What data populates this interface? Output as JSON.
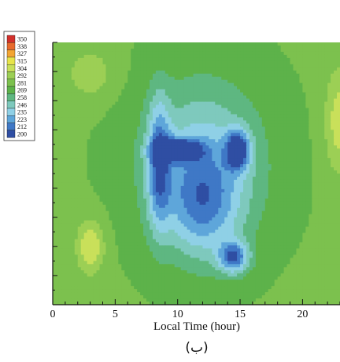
{
  "chart_data": {
    "type": "heatmap",
    "xlabel": "Local Time (hour)",
    "x_ticks": [
      0,
      5,
      10,
      15,
      20
    ],
    "xlim": [
      0,
      23
    ],
    "caption": "(ب)",
    "legend": {
      "levels": [
        350,
        338,
        327,
        315,
        304,
        292,
        281,
        269,
        258,
        246,
        235,
        223,
        212,
        200
      ],
      "colors": [
        "#d2302b",
        "#e86a2c",
        "#f3a532",
        "#e7e44a",
        "#c9e05a",
        "#9ccf55",
        "#7cc14e",
        "#5db24a",
        "#5eb781",
        "#7ec9bd",
        "#8fd0e6",
        "#5ea6da",
        "#3f78c6",
        "#2f4ea3"
      ]
    },
    "field_scale": [
      200,
      300
    ],
    "field_features": [
      {
        "x": 3,
        "y": 0.78,
        "value": 310,
        "sx": 1.1,
        "sy": 0.1
      },
      {
        "x": 23,
        "y": 0.3,
        "value": 306,
        "sx": 1.2,
        "sy": 0.2
      },
      {
        "x": 8.5,
        "y": 0.46,
        "value": 224,
        "sx": 0.9,
        "sy": 0.24
      },
      {
        "x": 10,
        "y": 0.41,
        "value": 205,
        "sx": 1.8,
        "sy": 0.04
      },
      {
        "x": 14.8,
        "y": 0.41,
        "value": 203,
        "sx": 0.9,
        "sy": 0.07
      },
      {
        "x": 14.5,
        "y": 0.82,
        "value": 214,
        "sx": 1.2,
        "sy": 0.06
      },
      {
        "x": 12,
        "y": 0.63,
        "value": 236,
        "sx": 3.0,
        "sy": 0.2
      },
      {
        "x": 12,
        "y": 0.45,
        "value": 235,
        "sx": 4.8,
        "sy": 0.3
      },
      {
        "x": 3,
        "y": 0.12,
        "value": 294,
        "sx": 2.0,
        "sy": 0.1
      }
    ]
  }
}
